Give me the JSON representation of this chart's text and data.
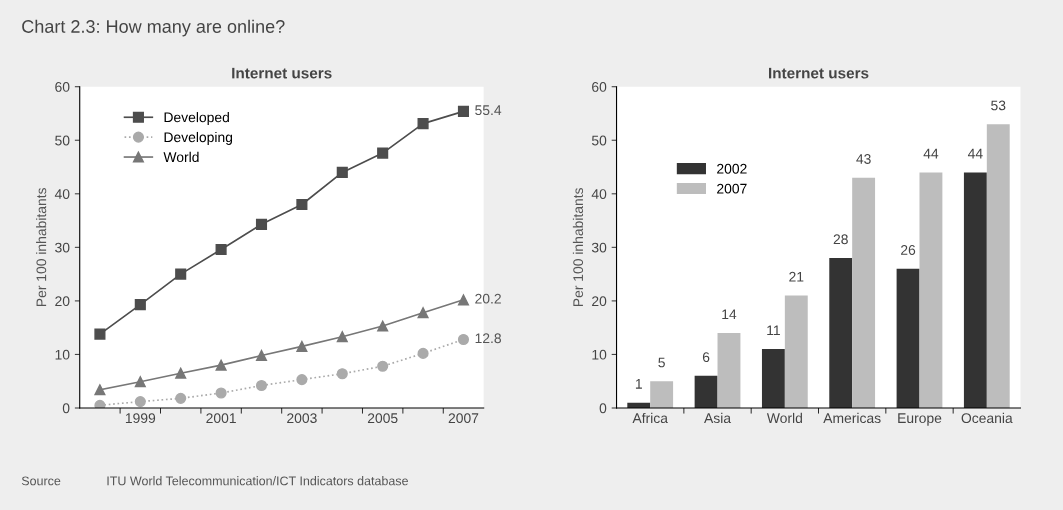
{
  "chart_data": [
    {
      "type": "line",
      "title": "Internet users",
      "ylabel": "Per 100 inhabitants",
      "annotations": [
        "Chart 2.3: How many are online?",
        "Source",
        "ITU World Telecommunication/ICT Indicators database"
      ],
      "categories": [
        null,
        "1999",
        null,
        "2001",
        null,
        "2003",
        null,
        "2005",
        null,
        "2007"
      ],
      "series": [
        {
          "name": "Developed",
          "color": "#4d4d4d",
          "marker": "square",
          "line_style": "solid",
          "values": [
            13.8,
            19.3,
            25.0,
            29.6,
            34.3,
            38.0,
            44.0,
            47.6,
            53.1,
            55.4
          ],
          "value_labels": [
            null,
            null,
            null,
            null,
            null,
            null,
            null,
            null,
            null,
            "55.4"
          ]
        },
        {
          "name": "Developing",
          "color": "#aaaaaa",
          "marker": "circle",
          "line_style": "dotted",
          "values": [
            0.5,
            1.2,
            1.8,
            2.8,
            4.2,
            5.3,
            6.4,
            7.8,
            10.2,
            12.8
          ],
          "value_labels": [
            null,
            null,
            null,
            null,
            null,
            null,
            null,
            null,
            null,
            "12.8"
          ]
        },
        {
          "name": "World",
          "color": "#777777",
          "marker": "triangle",
          "line_style": "solid",
          "values": [
            3.4,
            4.9,
            6.5,
            8.0,
            9.8,
            11.5,
            13.3,
            15.3,
            17.8,
            20.2
          ],
          "value_labels": [
            null,
            null,
            null,
            null,
            null,
            null,
            null,
            null,
            null,
            "20.2"
          ]
        }
      ],
      "ylim": [
        0,
        60
      ],
      "yticks": [
        0,
        10,
        20,
        30,
        40,
        50,
        60
      ],
      "grid": false,
      "legend": "top left"
    },
    {
      "type": "bar",
      "title": "Internet users",
      "ylabel": "Per 100 inhabitants",
      "categories": [
        "Africa",
        "Asia",
        "World",
        "Americas",
        "Europe",
        "Oceania"
      ],
      "series": [
        {
          "name": "2002",
          "color": "#333333",
          "values": [
            1,
            6,
            11,
            28,
            26,
            44
          ]
        },
        {
          "name": "2007",
          "color": "#bdbdbd",
          "values": [
            5,
            14,
            21,
            43,
            44,
            53
          ]
        }
      ],
      "ylim": [
        0,
        60
      ],
      "yticks": [
        0,
        10,
        20,
        30,
        40,
        50,
        60
      ],
      "grid": false,
      "legend": "top left",
      "data_labels": true
    }
  ]
}
